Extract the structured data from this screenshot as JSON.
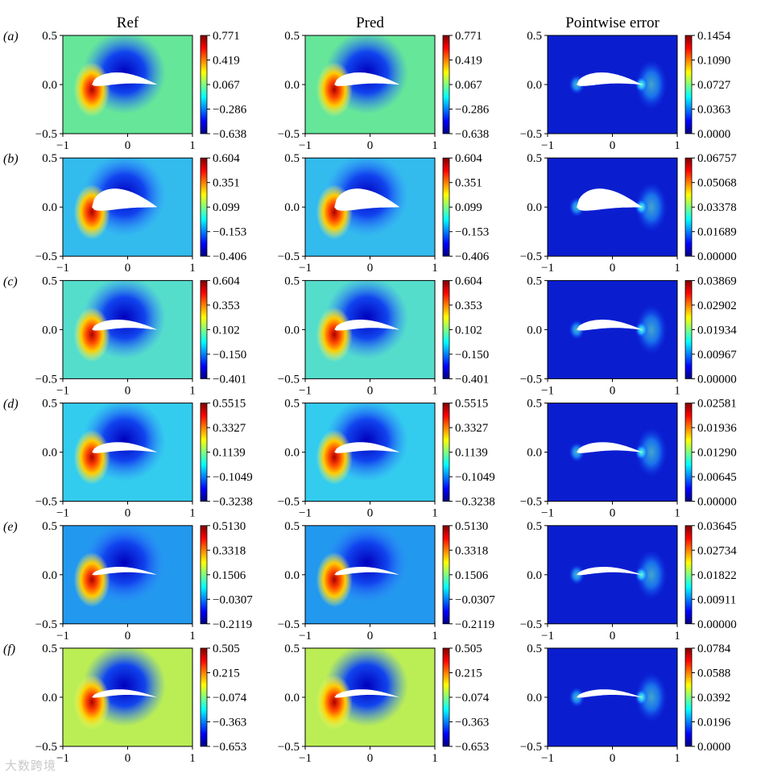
{
  "column_titles": [
    "Ref",
    "Pred",
    "Pointwise error"
  ],
  "watermark": "大数跨境",
  "chart_data": {
    "type": "heatmap",
    "xlim": [
      -1,
      1
    ],
    "ylim": [
      -0.5,
      0.5
    ],
    "x_ticks": [
      "−1",
      "0",
      "1"
    ],
    "y_ticks": [
      "0.5",
      "0.0",
      "−0.5"
    ],
    "rows": [
      {
        "label": "(a)",
        "ref_ticks": [
          "0.771",
          "0.419",
          "0.067",
          "−0.286",
          "−0.638"
        ],
        "pred_ticks": [
          "0.771",
          "0.419",
          "0.067",
          "−0.286",
          "−0.638"
        ],
        "err_ticks": [
          "0.1454",
          "0.1090",
          "0.0727",
          "0.0363",
          "0.0000"
        ],
        "field_bg": "#66e699",
        "thickness": 0.08
      },
      {
        "label": "(b)",
        "ref_ticks": [
          "0.604",
          "0.351",
          "0.099",
          "−0.153",
          "−0.406"
        ],
        "pred_ticks": [
          "0.604",
          "0.351",
          "0.099",
          "−0.153",
          "−0.406"
        ],
        "err_ticks": [
          "0.06757",
          "0.05068",
          "0.03378",
          "0.01689",
          "0.00000"
        ],
        "field_bg": "#33bbee",
        "thickness": 0.14
      },
      {
        "label": "(c)",
        "ref_ticks": [
          "0.604",
          "0.353",
          "0.102",
          "−0.150",
          "−0.401"
        ],
        "pred_ticks": [
          "0.604",
          "0.353",
          "0.102",
          "−0.150",
          "−0.401"
        ],
        "err_ticks": [
          "0.03869",
          "0.02902",
          "0.01934",
          "0.00967",
          "0.00000"
        ],
        "field_bg": "#55ddcc",
        "thickness": 0.06
      },
      {
        "label": "(d)",
        "ref_ticks": [
          "0.5515",
          "0.3327",
          "0.1139",
          "−0.1049",
          "−0.3238"
        ],
        "pred_ticks": [
          "0.5515",
          "0.3327",
          "0.1139",
          "−0.1049",
          "−0.3238"
        ],
        "err_ticks": [
          "0.02581",
          "0.01936",
          "0.01290",
          "0.00645",
          "0.00000"
        ],
        "field_bg": "#33ccee",
        "thickness": 0.06
      },
      {
        "label": "(e)",
        "ref_ticks": [
          "0.5130",
          "0.3318",
          "0.1506",
          "−0.0307",
          "−0.2119"
        ],
        "pred_ticks": [
          "0.5130",
          "0.3318",
          "0.1506",
          "−0.0307",
          "−0.2119"
        ],
        "err_ticks": [
          "0.03645",
          "0.02734",
          "0.01822",
          "0.00911",
          "0.00000"
        ],
        "field_bg": "#2299ee",
        "thickness": 0.04
      },
      {
        "label": "(f)",
        "ref_ticks": [
          "0.505",
          "0.215",
          "−0.074",
          "−0.363",
          "−0.653"
        ],
        "pred_ticks": [
          "0.505",
          "0.215",
          "−0.074",
          "−0.363",
          "−0.653"
        ],
        "err_ticks": [
          "0.0784",
          "0.0588",
          "0.0392",
          "0.0196",
          "0.0000"
        ],
        "field_bg": "#bbee55",
        "thickness": 0.04
      }
    ],
    "colormap": "jet"
  }
}
